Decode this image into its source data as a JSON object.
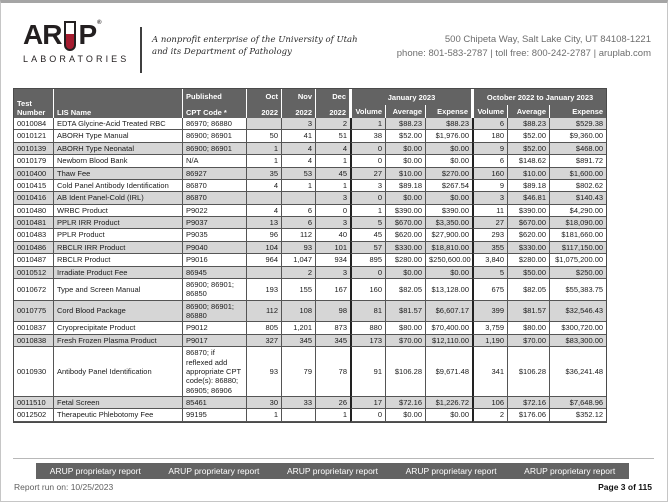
{
  "brand": {
    "name_part1": "AR",
    "name_part2": "P",
    "registered_mark": "®",
    "sub": "LABORATORIES",
    "tagline_line1": "A nonprofit enterprise of the University of Utah",
    "tagline_line2": "and its Department of Pathology",
    "address_line1": "500 Chipeta Way, Salt Lake City, UT 84108-1221",
    "address_line2": "phone: 801-583-2787  |  toll free: 800-242-2787  |  aruplab.com"
  },
  "colors": {
    "accent_red": "#a51c30",
    "header_bg": "#636363",
    "stripe": "#d6d6d6"
  },
  "table": {
    "headers": {
      "test_line1": "Test",
      "test_line2": "Number",
      "lis_name": "LIS Name",
      "published": "Published",
      "cpt_code": "CPT Code *",
      "months": [
        {
          "month": "Oct",
          "year": "2022"
        },
        {
          "month": "Nov",
          "year": "2022"
        },
        {
          "month": "Dec",
          "year": "2022"
        }
      ],
      "group_january": "January 2023",
      "group_range": "October 2022 to January 2023",
      "sub": [
        "Volume",
        "Average",
        "Expense"
      ]
    },
    "rows": [
      [
        "0010084",
        "EDTA Glycine-Acid Treated RBC",
        "86970; 86880",
        "",
        "3",
        "2",
        "1",
        "$88.23",
        "$88.23",
        "6",
        "$88.23",
        "$529.38"
      ],
      [
        "0010121",
        "ABORH Type Manual",
        "86900; 86901",
        "50",
        "41",
        "51",
        "38",
        "$52.00",
        "$1,976.00",
        "180",
        "$52.00",
        "$9,360.00"
      ],
      [
        "0010139",
        "ABORH Type Neonatal",
        "86900; 86901",
        "1",
        "4",
        "4",
        "0",
        "$0.00",
        "$0.00",
        "9",
        "$52.00",
        "$468.00"
      ],
      [
        "0010179",
        "Newborn Blood Bank",
        "N/A",
        "1",
        "4",
        "1",
        "0",
        "$0.00",
        "$0.00",
        "6",
        "$148.62",
        "$891.72"
      ],
      [
        "0010400",
        "Thaw Fee",
        "86927",
        "35",
        "53",
        "45",
        "27",
        "$10.00",
        "$270.00",
        "160",
        "$10.00",
        "$1,600.00"
      ],
      [
        "0010415",
        "Cold Panel Antibody Identification",
        "86870",
        "4",
        "1",
        "1",
        "3",
        "$89.18",
        "$267.54",
        "9",
        "$89.18",
        "$802.62"
      ],
      [
        "0010416",
        "AB Ident Panel-Cold (IRL)",
        "86870",
        "",
        "",
        "3",
        "0",
        "$0.00",
        "$0.00",
        "3",
        "$46.81",
        "$140.43"
      ],
      [
        "0010480",
        "WRBC Product",
        "P9022",
        "4",
        "6",
        "0",
        "1",
        "$390.00",
        "$390.00",
        "11",
        "$390.00",
        "$4,290.00"
      ],
      [
        "0010481",
        "PPLR IRR Product",
        "P9037",
        "13",
        "6",
        "3",
        "5",
        "$670.00",
        "$3,350.00",
        "27",
        "$670.00",
        "$18,090.00"
      ],
      [
        "0010483",
        "PPLR Product",
        "P9035",
        "96",
        "112",
        "40",
        "45",
        "$620.00",
        "$27,900.00",
        "293",
        "$620.00",
        "$181,660.00"
      ],
      [
        "0010486",
        "RBCLR IRR Product",
        "P9040",
        "104",
        "93",
        "101",
        "57",
        "$330.00",
        "$18,810.00",
        "355",
        "$330.00",
        "$117,150.00"
      ],
      [
        "0010487",
        "RBCLR Product",
        "P9016",
        "964",
        "1,047",
        "934",
        "895",
        "$280.00",
        "$250,600.00",
        "3,840",
        "$280.00",
        "$1,075,200.00"
      ],
      [
        "0010512",
        "Irradiate Product Fee",
        "86945",
        "",
        "2",
        "3",
        "0",
        "$0.00",
        "$0.00",
        "5",
        "$50.00",
        "$250.00"
      ],
      [
        "0010672",
        "Type and Screen Manual",
        "86900; 86901; 86850",
        "193",
        "155",
        "167",
        "160",
        "$82.05",
        "$13,128.00",
        "675",
        "$82.05",
        "$55,383.75"
      ],
      [
        "0010775",
        "Cord Blood Package",
        "86900; 86901; 86880",
        "112",
        "108",
        "98",
        "81",
        "$81.57",
        "$6,607.17",
        "399",
        "$81.57",
        "$32,546.43"
      ],
      [
        "0010837",
        "Cryoprecipitate Product",
        "P9012",
        "805",
        "1,201",
        "873",
        "880",
        "$80.00",
        "$70,400.00",
        "3,759",
        "$80.00",
        "$300,720.00"
      ],
      [
        "0010838",
        "Fresh Frozen Plasma Product",
        "P9017",
        "327",
        "345",
        "345",
        "173",
        "$70.00",
        "$12,110.00",
        "1,190",
        "$70.00",
        "$83,300.00"
      ],
      [
        "0010930",
        "Antibody Panel Identification",
        "86870; if reflexed add appropriate CPT code(s): 86880; 86905; 86906",
        "93",
        "79",
        "78",
        "91",
        "$106.28",
        "$9,671.48",
        "341",
        "$106.28",
        "$36,241.48"
      ],
      [
        "0011510",
        "Fetal Screen",
        "85461",
        "30",
        "33",
        "26",
        "17",
        "$72.16",
        "$1,226.72",
        "106",
        "$72.16",
        "$7,648.96"
      ],
      [
        "0012502",
        "Therapeutic Phlebotomy Fee",
        "99195",
        "1",
        "",
        "1",
        "0",
        "$0.00",
        "$0.00",
        "2",
        "$176.06",
        "$352.12"
      ]
    ]
  },
  "footer": {
    "proprietary_label": "ARUP proprietary report",
    "report_run": "Report run on: 10/25/2023",
    "page_label": "Page 3 of 115"
  }
}
